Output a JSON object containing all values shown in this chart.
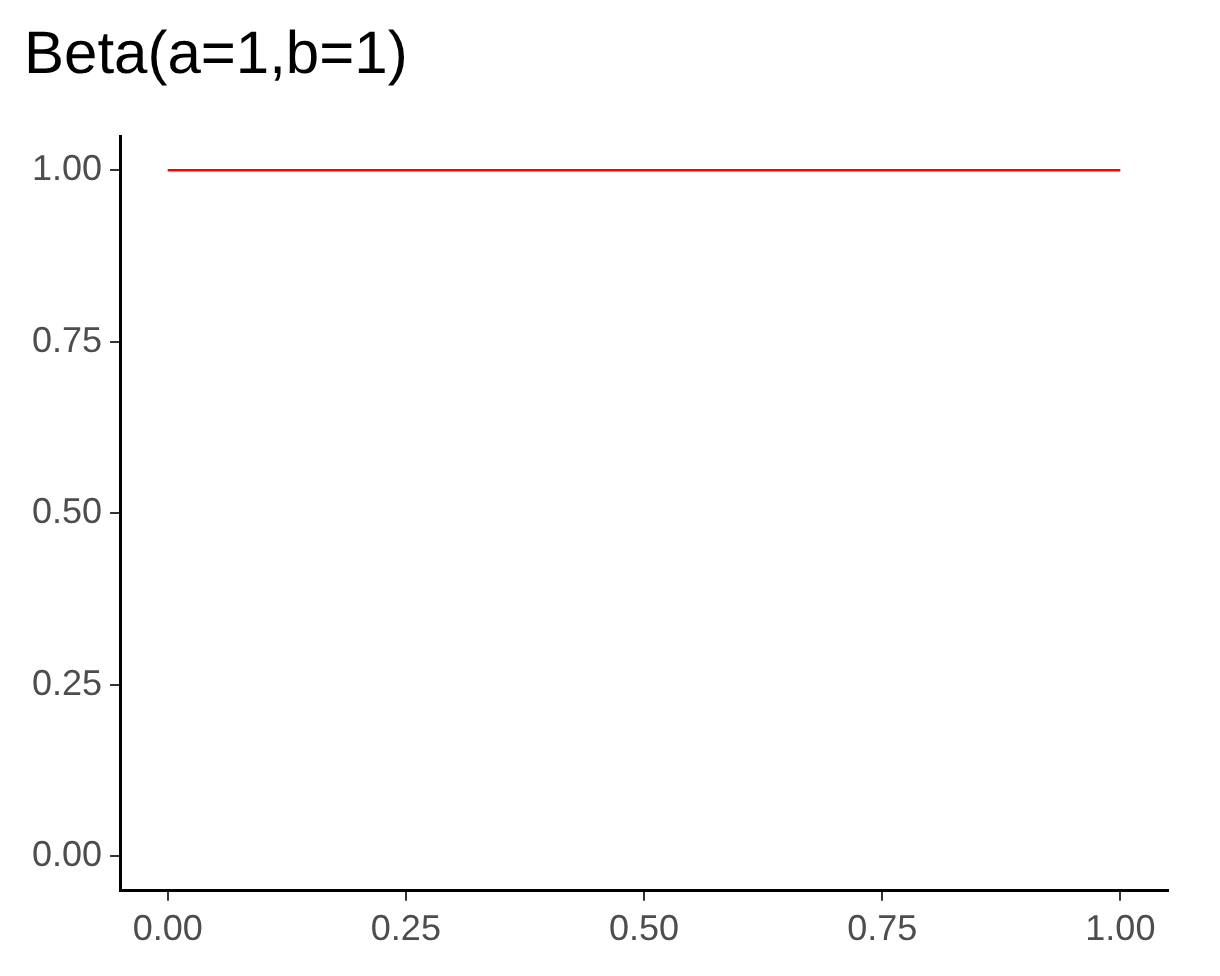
{
  "chart_data": {
    "type": "line",
    "title": "Beta(a=1,b=1)",
    "x": [
      0,
      1
    ],
    "series": [
      {
        "color": "#ff0000",
        "values": [
          1,
          1
        ]
      }
    ],
    "xlim": [
      -0.05,
      1.05
    ],
    "xticks": [
      {
        "value": 0,
        "label": "0.00"
      },
      {
        "value": 0.25,
        "label": "0.25"
      },
      {
        "value": 0.5,
        "label": "0.50"
      },
      {
        "value": 0.75,
        "label": "0.75"
      },
      {
        "value": 1,
        "label": "1.00"
      }
    ],
    "ylim": [
      -0.05,
      1.05
    ],
    "yticks": [
      {
        "value": 0,
        "label": "0.00"
      },
      {
        "value": 0.25,
        "label": "0.25"
      },
      {
        "value": 0.5,
        "label": "0.50"
      },
      {
        "value": 0.75,
        "label": "0.75"
      },
      {
        "value": 1,
        "label": "1.00"
      }
    ],
    "grid": false,
    "legend": false,
    "marker": "none",
    "line_style": "solid"
  }
}
